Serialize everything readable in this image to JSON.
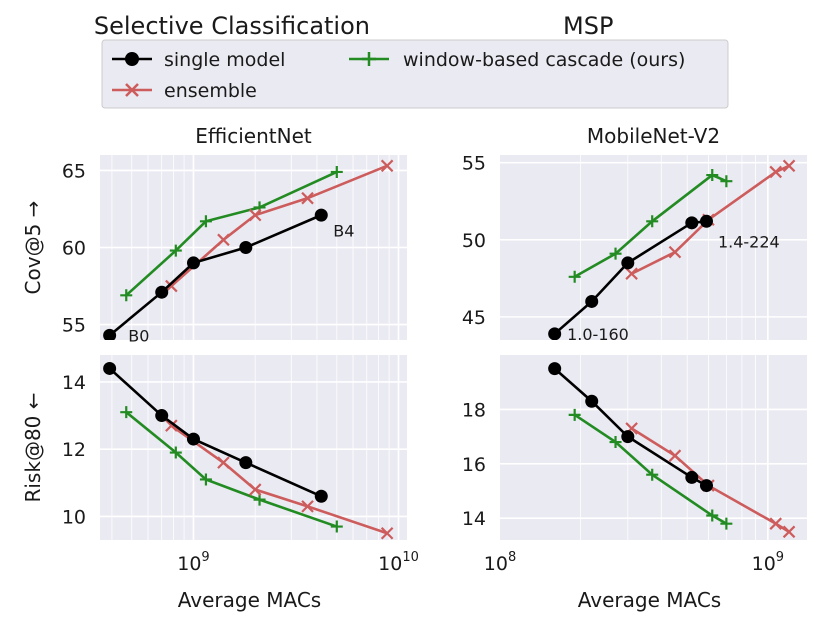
{
  "figure": {
    "title_main": "Selective Classification",
    "title_sub": "MSP",
    "legend": {
      "placement": "top-center",
      "entries": [
        {
          "label": "single model",
          "color": "#000000",
          "marker": "circle"
        },
        {
          "label": "window-based cascade (ours)",
          "color": "#228B22",
          "marker": "plus"
        },
        {
          "label": "ensemble",
          "color": "#CD5C5C",
          "marker": "x"
        }
      ]
    }
  },
  "chart_data": [
    {
      "type": "line",
      "panel": "top-left",
      "title": "EfficientNet",
      "ylabel": "Cov@5 →",
      "xlabel": "",
      "xscale": "log",
      "xlim": [
        350000000,
        11000000000
      ],
      "ylim": [
        54,
        66
      ],
      "yticks": [
        55,
        60,
        65
      ],
      "xticks": [],
      "series": [
        {
          "name": "single model",
          "x": [
            390000000,
            700000000,
            1000000000,
            1800000000,
            4200000000
          ],
          "y": [
            54.3,
            57.1,
            59.0,
            60.0,
            62.1
          ]
        },
        {
          "name": "ensemble",
          "x": [
            780000000,
            1400000000,
            2000000000,
            3600000000,
            8800000000
          ],
          "y": [
            57.5,
            60.5,
            62.1,
            63.2,
            65.3
          ]
        },
        {
          "name": "window-based cascade (ours)",
          "x": [
            470000000,
            820000000,
            1150000000,
            2100000000,
            5000000000
          ],
          "y": [
            56.9,
            59.8,
            61.7,
            62.6,
            64.9
          ]
        }
      ],
      "annotations": [
        {
          "text": "B0",
          "x": 470000000,
          "y": 54.3
        },
        {
          "text": "B4",
          "x": 4700000000,
          "y": 61.1
        }
      ],
      "grid": true
    },
    {
      "type": "line",
      "panel": "top-right",
      "title": "MobileNet-V2",
      "ylabel": "",
      "xlabel": "",
      "xscale": "log",
      "xlim": [
        100000000,
        1400000000
      ],
      "ylim": [
        43.5,
        55.5
      ],
      "yticks": [
        45,
        50,
        55
      ],
      "xticks": [],
      "series": [
        {
          "name": "single model",
          "x": [
            160000000,
            220000000,
            300000000,
            520000000,
            590000000
          ],
          "y": [
            43.9,
            46.0,
            48.5,
            51.1,
            51.2
          ]
        },
        {
          "name": "ensemble",
          "x": [
            310000000,
            450000000,
            600000000,
            1070000000,
            1200000000
          ],
          "y": [
            47.8,
            49.2,
            51.3,
            54.4,
            54.8
          ]
        },
        {
          "name": "window-based cascade (ours)",
          "x": [
            190000000,
            270000000,
            370000000,
            620000000,
            700000000
          ],
          "y": [
            47.6,
            49.1,
            51.2,
            54.2,
            53.8
          ]
        }
      ],
      "annotations": [
        {
          "text": "1.0-160",
          "x": 175000000,
          "y": 43.9
        },
        {
          "text": "1.4-224",
          "x": 640000000,
          "y": 49.9
        }
      ],
      "grid": true
    },
    {
      "type": "line",
      "panel": "bottom-left",
      "title": "",
      "ylabel": "Risk@80 ←",
      "xlabel": "Average MACs",
      "xscale": "log",
      "xlim": [
        350000000,
        11000000000
      ],
      "ylim": [
        9.3,
        14.8
      ],
      "yticks": [
        10,
        12,
        14
      ],
      "xticks": [
        "10^9",
        "10^10"
      ],
      "series": [
        {
          "name": "single model",
          "x": [
            390000000,
            700000000,
            1000000000,
            1800000000,
            4200000000
          ],
          "y": [
            14.4,
            13.0,
            12.3,
            11.6,
            10.6
          ]
        },
        {
          "name": "ensemble",
          "x": [
            780000000,
            1400000000,
            2000000000,
            3600000000,
            8800000000
          ],
          "y": [
            12.7,
            11.6,
            10.8,
            10.3,
            9.5
          ]
        },
        {
          "name": "window-based cascade (ours)",
          "x": [
            470000000,
            820000000,
            1150000000,
            2100000000,
            5000000000
          ],
          "y": [
            13.1,
            11.9,
            11.1,
            10.5,
            9.7
          ]
        }
      ],
      "grid": true
    },
    {
      "type": "line",
      "panel": "bottom-right",
      "title": "",
      "ylabel": "",
      "xlabel": "Average MACs",
      "xscale": "log",
      "xlim": [
        100000000,
        1400000000
      ],
      "ylim": [
        13.2,
        20.0
      ],
      "yticks": [
        14,
        16,
        18
      ],
      "xticks": [
        "10^8",
        "10^9"
      ],
      "series": [
        {
          "name": "single model",
          "x": [
            160000000,
            220000000,
            300000000,
            520000000,
            590000000
          ],
          "y": [
            19.5,
            18.3,
            17.0,
            15.5,
            15.2
          ]
        },
        {
          "name": "ensemble",
          "x": [
            310000000,
            450000000,
            600000000,
            1070000000,
            1200000000
          ],
          "y": [
            17.3,
            16.3,
            15.2,
            13.8,
            13.5
          ]
        },
        {
          "name": "window-based cascade (ours)",
          "x": [
            190000000,
            270000000,
            370000000,
            620000000,
            700000000
          ],
          "y": [
            17.8,
            16.8,
            15.6,
            14.1,
            13.8
          ]
        }
      ],
      "grid": true
    }
  ]
}
